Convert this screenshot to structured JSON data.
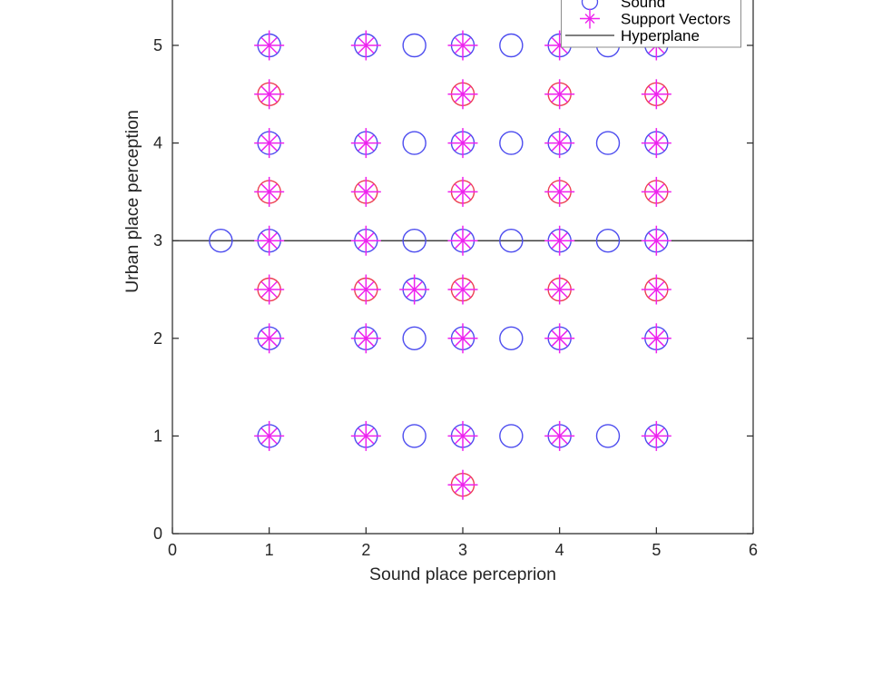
{
  "colors": {
    "blue_class": "#4c4cef",
    "red_class": "#ed3e52",
    "support_vector": "#ee22ee",
    "axis": "#262626",
    "hyperplane": "#000000",
    "legend_border": "#8c8c8c",
    "legend_line_icon": "#555555",
    "legend_text": "#000000",
    "background": "#ffffff"
  },
  "legend": {
    "items": [
      {
        "label": "Sound",
        "marker": "circle"
      },
      {
        "label": "Support Vectors",
        "marker": "star"
      },
      {
        "label": "Hyperplane",
        "marker": "line"
      }
    ]
  },
  "chart_data": {
    "type": "scatter",
    "title": "",
    "xlabel": "Sound place perceprion",
    "ylabel": "Urban place perception",
    "xlim": [
      0,
      6
    ],
    "ylim": [
      0,
      5.5
    ],
    "x_ticks": [
      0,
      1,
      2,
      3,
      4,
      5,
      6
    ],
    "y_ticks": [
      0,
      1,
      2,
      3,
      4,
      5
    ],
    "grid": false,
    "legend_position": "top-right",
    "hyperplane_y": 3,
    "point_format": [
      "x",
      "y",
      "class",
      "support_vector"
    ],
    "points": [
      [
        1,
        5,
        "blue",
        1
      ],
      [
        2,
        5,
        "blue",
        1
      ],
      [
        2.5,
        5,
        "blue",
        0
      ],
      [
        3,
        5,
        "blue",
        1
      ],
      [
        3.5,
        5,
        "blue",
        0
      ],
      [
        4,
        5,
        "blue",
        1
      ],
      [
        4.5,
        5,
        "blue",
        0
      ],
      [
        5,
        5,
        "blue",
        1
      ],
      [
        1,
        4.5,
        "red",
        1
      ],
      [
        3,
        4.5,
        "red",
        1
      ],
      [
        4,
        4.5,
        "red",
        1
      ],
      [
        5,
        4.5,
        "red",
        1
      ],
      [
        1,
        4,
        "blue",
        1
      ],
      [
        2,
        4,
        "blue",
        1
      ],
      [
        2.5,
        4,
        "blue",
        0
      ],
      [
        3,
        4,
        "blue",
        1
      ],
      [
        3.5,
        4,
        "blue",
        0
      ],
      [
        4,
        4,
        "blue",
        1
      ],
      [
        4.5,
        4,
        "blue",
        0
      ],
      [
        5,
        4,
        "blue",
        1
      ],
      [
        1,
        3.5,
        "red",
        1
      ],
      [
        2,
        3.5,
        "red",
        1
      ],
      [
        3,
        3.5,
        "red",
        1
      ],
      [
        4,
        3.5,
        "red",
        1
      ],
      [
        5,
        3.5,
        "red",
        1
      ],
      [
        0.5,
        3,
        "blue",
        0
      ],
      [
        1,
        3,
        "blue",
        1
      ],
      [
        2,
        3,
        "blue",
        1
      ],
      [
        2.5,
        3,
        "blue",
        0
      ],
      [
        3,
        3,
        "blue",
        1
      ],
      [
        3.5,
        3,
        "blue",
        0
      ],
      [
        4,
        3,
        "blue",
        1
      ],
      [
        4.5,
        3,
        "blue",
        0
      ],
      [
        5,
        3,
        "blue",
        1
      ],
      [
        1,
        2.5,
        "red",
        1
      ],
      [
        2,
        2.5,
        "red",
        1
      ],
      [
        2.5,
        2.5,
        "blue",
        1
      ],
      [
        3,
        2.5,
        "red",
        1
      ],
      [
        4,
        2.5,
        "red",
        1
      ],
      [
        5,
        2.5,
        "red",
        1
      ],
      [
        1,
        2,
        "blue",
        1
      ],
      [
        2,
        2,
        "blue",
        1
      ],
      [
        2.5,
        2,
        "blue",
        0
      ],
      [
        3,
        2,
        "blue",
        1
      ],
      [
        3.5,
        2,
        "blue",
        0
      ],
      [
        4,
        2,
        "blue",
        1
      ],
      [
        5,
        2,
        "blue",
        1
      ],
      [
        1,
        1,
        "blue",
        1
      ],
      [
        2,
        1,
        "blue",
        1
      ],
      [
        2.5,
        1,
        "blue",
        0
      ],
      [
        3,
        1,
        "blue",
        1
      ],
      [
        3.5,
        1,
        "blue",
        0
      ],
      [
        4,
        1,
        "blue",
        1
      ],
      [
        4.5,
        1,
        "blue",
        0
      ],
      [
        5,
        1,
        "blue",
        1
      ],
      [
        3,
        0.5,
        "red",
        1
      ]
    ]
  }
}
